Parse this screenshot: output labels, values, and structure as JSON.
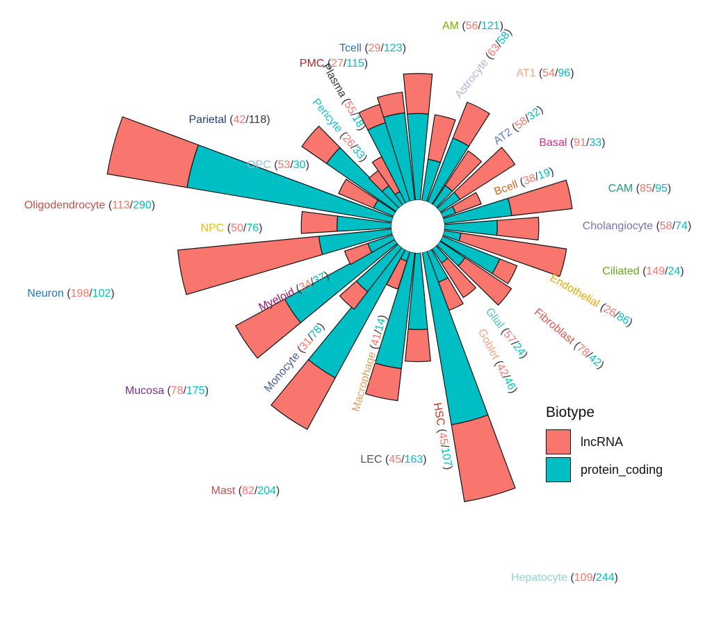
{
  "chart_data": {
    "type": "bar",
    "subtype": "stacked-radial",
    "legend": {
      "title": "Biotype",
      "placement": "right-bottom",
      "entries": [
        {
          "name": "lncRNA",
          "color": "#F8766D"
        },
        {
          "name": "protein_coding",
          "color": "#00BFC4"
        }
      ]
    },
    "series": [
      {
        "name": "lncRNA",
        "color": "#F8766D"
      },
      {
        "name": "protein_coding",
        "color": "#00BFC4"
      }
    ],
    "categories": [
      {
        "name": "AM",
        "lncRNA": 56,
        "protein_coding": 121,
        "color": "#7CAE00",
        "lnc_color": "#F8766D",
        "pc_color": "#00BFC4",
        "angle": 0
      },
      {
        "name": "Astrocyte",
        "lncRNA": 63,
        "protein_coding": 58,
        "color": "#B7B3D8",
        "lnc_color": "#F8766D",
        "pc_color": "#00BFC4",
        "angle": 14
      },
      {
        "name": "AT1",
        "lncRNA": 54,
        "protein_coding": 96,
        "color": "#F4A582",
        "lnc_color": "#F8766D",
        "pc_color": "#00BFC4",
        "angle": 27
      },
      {
        "name": "AT2",
        "lncRNA": 58,
        "protein_coding": 32,
        "color": "#5B7DB7",
        "lnc_color": "#F8766D",
        "pc_color": "#00BFC4",
        "angle": 39
      },
      {
        "name": "Basal",
        "lncRNA": 91,
        "protein_coding": 33,
        "color": "#E7298A",
        "lnc_color": "#F8766D",
        "pc_color": "#00BFC4",
        "angle": 52
      },
      {
        "name": "Bcell",
        "lncRNA": 38,
        "protein_coding": 19,
        "color": "#D2691E",
        "lnc_color": "#F8766D",
        "pc_color": "#00BFC4",
        "angle": 65
      },
      {
        "name": "CAM",
        "lncRNA": 85,
        "protein_coding": 95,
        "color": "#1B9E77",
        "lnc_color": "#F8766D",
        "pc_color": "#00BFC4",
        "angle": 78
      },
      {
        "name": "Cholangiocyte",
        "lncRNA": 58,
        "protein_coding": 74,
        "color": "#7570B3",
        "lnc_color": "#F8766D",
        "pc_color": "#00BFC4",
        "angle": 91
      },
      {
        "name": "Ciliated",
        "lncRNA": 149,
        "protein_coding": 24,
        "color": "#66A61E",
        "lnc_color": "#F8766D",
        "pc_color": "#00BFC4",
        "angle": 104
      },
      {
        "name": "Endothelial",
        "lncRNA": 26,
        "protein_coding": 86,
        "color": "#E6AB02",
        "lnc_color": "#F8766D",
        "pc_color": "#00BFC4",
        "angle": 117
      },
      {
        "name": "Fibroblast",
        "lncRNA": 78,
        "protein_coding": 42,
        "color": "#D9534F",
        "lnc_color": "#F8766D",
        "pc_color": "#00BFC4",
        "angle": 129
      },
      {
        "name": "Glial",
        "lncRNA": 57,
        "protein_coding": 24,
        "color": "#4FC1C1",
        "lnc_color": "#F8766D",
        "pc_color": "#00BFC4",
        "angle": 142
      },
      {
        "name": "Goblet",
        "lncRNA": 42,
        "protein_coding": 46,
        "color": "#F4A582",
        "lnc_color": "#F8766D",
        "pc_color": "#00BFC4",
        "angle": 155
      },
      {
        "name": "Hepatocyte",
        "lncRNA": 109,
        "protein_coding": 244,
        "color": "#8FD3D3",
        "lnc_color": "#F8766D",
        "pc_color": "#00BFC4",
        "angle": 165
      },
      {
        "name": "HSC",
        "lncRNA": 45,
        "protein_coding": 107,
        "color": "#C0392B",
        "lnc_color": "#F8766D",
        "pc_color": "#00BFC4",
        "angle": 180
      },
      {
        "name": "LEC",
        "lncRNA": 45,
        "protein_coding": 163,
        "color": "#555555",
        "lnc_color": "#F8766D",
        "pc_color": "#00BFC4",
        "angle": 192
      },
      {
        "name": "Macrophage",
        "lncRNA": 41,
        "protein_coding": 14,
        "color": "#E0A060",
        "lnc_color": "#F8766D",
        "pc_color": "#00BFC4",
        "angle": 203
      },
      {
        "name": "Mast",
        "lncRNA": 82,
        "protein_coding": 204,
        "color": "#C0504D",
        "lnc_color": "#F8766D",
        "pc_color": "#00BFC4",
        "angle": 214
      },
      {
        "name": "Monocyte",
        "lncRNA": 31,
        "protein_coding": 78,
        "color": "#4A5A9E",
        "lnc_color": "#F8766D",
        "pc_color": "#00BFC4",
        "angle": 223
      },
      {
        "name": "Mucosa",
        "lncRNA": 78,
        "protein_coding": 175,
        "color": "#7B2D8E",
        "lnc_color": "#F8766D",
        "pc_color": "#00BFC4",
        "angle": 236
      },
      {
        "name": "Myeloid",
        "lncRNA": 34,
        "protein_coding": 37,
        "color": "#A0156E",
        "lnc_color": "#F8766D",
        "pc_color": "#00BFC4",
        "angle": 246
      },
      {
        "name": "Neuron",
        "lncRNA": 198,
        "protein_coding": 102,
        "color": "#1F77B4",
        "lnc_color": "#F8766D",
        "pc_color": "#00BFC4",
        "angle": 259
      },
      {
        "name": "NPC",
        "lncRNA": 50,
        "protein_coding": 76,
        "color": "#E6C200",
        "lnc_color": "#F8766D",
        "pc_color": "#00BFC4",
        "angle": 272
      },
      {
        "name": "Oligodendrocyte",
        "lncRNA": 113,
        "protein_coding": 290,
        "color": "#C0504D",
        "lnc_color": "#F8766D",
        "pc_color": "#00BFC4",
        "angle": 285
      },
      {
        "name": "OPC",
        "lncRNA": 53,
        "protein_coding": 30,
        "color": "#8FB8E0",
        "lnc_color": "#F8766D",
        "pc_color": "#00BFC4",
        "angle": 298
      },
      {
        "name": "Parietal",
        "lncRNA": 42,
        "protein_coding": 118,
        "color": "#1F3F7A",
        "lnc_color": "#F8766D",
        "pc_color": "#333333",
        "angle": 310
      },
      {
        "name": "Pericyte",
        "lncRNA": 26,
        "protein_coding": 33,
        "color": "#17BECF",
        "lnc_color": "#F8766D",
        "pc_color": "#00BFC4",
        "angle": 320
      },
      {
        "name": "Plasma",
        "lncRNA": 55,
        "protein_coding": 18,
        "color": "#333333",
        "lnc_color": "#F8766D",
        "pc_color": "#00BFC4",
        "angle": 330
      },
      {
        "name": "PMC",
        "lncRNA": 27,
        "protein_coding": 115,
        "color": "#A52A2A",
        "lnc_color": "#F8766D",
        "pc_color": "#00BFC4",
        "angle": 338
      },
      {
        "name": "Tcell",
        "lncRNA": 29,
        "protein_coding": 123,
        "color": "#2F6FA8",
        "lnc_color": "#F8766D",
        "pc_color": "#00BFC4",
        "angle": 348
      }
    ]
  }
}
